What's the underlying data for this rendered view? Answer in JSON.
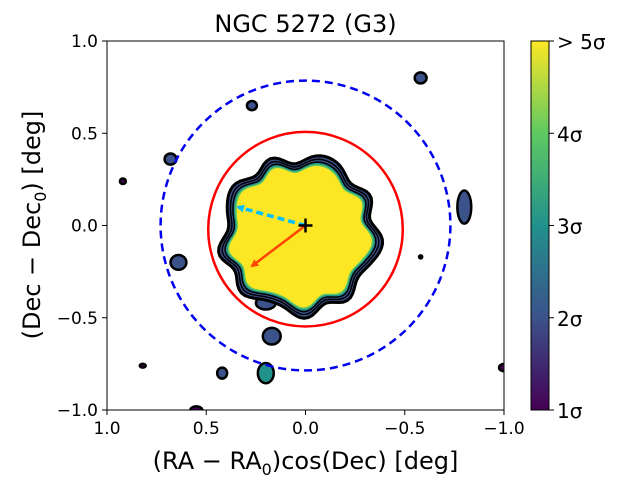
{
  "chart_data": {
    "type": "contour",
    "title": "NGC 5272 (G3)",
    "xlabel": {
      "main": "(RA − RA",
      "sub": "0",
      "tail": ")cos(Dec) [deg]"
    },
    "ylabel": {
      "main": "(Dec − Dec",
      "sub": "0",
      "tail": ") [deg]"
    },
    "xlim": [
      1.0,
      -1.0
    ],
    "ylim": [
      -1.0,
      1.0
    ],
    "xticks": [
      1.0,
      0.5,
      0.0,
      -0.5,
      -1.0
    ],
    "xtick_labels": [
      "1.0",
      "0.5",
      "0.0",
      "−0.5",
      "−1.0"
    ],
    "yticks": [
      1.0,
      0.5,
      0.0,
      -0.5,
      -1.0
    ],
    "ytick_labels": [
      "1.0",
      "0.5",
      "0.0",
      "−0.5",
      "−1.0"
    ],
    "colorbar": {
      "min": 1,
      "max": 5,
      "ticks": [
        1,
        2,
        3,
        4,
        5
      ],
      "tick_labels": [
        "1σ",
        "2σ",
        "3σ",
        "4σ",
        "> 5σ"
      ],
      "colormap": [
        "#440154",
        "#3b528b",
        "#21918c",
        "#5ec962",
        "#fde725"
      ]
    },
    "center": {
      "x": 0.0,
      "y": 0.0,
      "marker": "+"
    },
    "circles": [
      {
        "name": "tidal-radius",
        "x": 0.0,
        "y": -0.02,
        "r": 0.49,
        "color": "#ff0000",
        "style": "solid"
      },
      {
        "name": "outer-radius",
        "x": 0.0,
        "y": 0.0,
        "r": 0.73,
        "color": "#0000ee",
        "style": "dashed"
      }
    ],
    "vectors": [
      {
        "name": "proper-motion",
        "from": [
          0.0,
          0.0
        ],
        "to": [
          0.34,
          0.1
        ],
        "color": "#00bfff",
        "style": "dashed"
      },
      {
        "name": "gradient",
        "from": [
          0.0,
          0.0
        ],
        "to": [
          0.27,
          -0.22
        ],
        "color": "#ff4500",
        "style": "solid"
      }
    ],
    "main_blob": {
      "x": 0.03,
      "y": -0.05,
      "r": 0.39,
      "level": 5
    },
    "small_blobs": [
      {
        "x": -0.58,
        "y": 0.8,
        "rx": 0.03,
        "ry": 0.03,
        "level": 2
      },
      {
        "x": 0.27,
        "y": 0.65,
        "rx": 0.025,
        "ry": 0.025,
        "level": 2
      },
      {
        "x": 0.68,
        "y": 0.36,
        "rx": 0.03,
        "ry": 0.03,
        "level": 2
      },
      {
        "x": 0.92,
        "y": 0.24,
        "rx": 0.015,
        "ry": 0.015,
        "level": 1
      },
      {
        "x": -0.8,
        "y": 0.1,
        "rx": 0.035,
        "ry": 0.09,
        "level": 2
      },
      {
        "x": 0.64,
        "y": -0.2,
        "rx": 0.04,
        "ry": 0.04,
        "level": 2
      },
      {
        "x": 0.2,
        "y": -0.42,
        "rx": 0.05,
        "ry": 0.035,
        "level": 2
      },
      {
        "x": 0.17,
        "y": -0.6,
        "rx": 0.045,
        "ry": 0.045,
        "level": 2
      },
      {
        "x": 0.2,
        "y": -0.8,
        "rx": 0.04,
        "ry": 0.055,
        "level": 3
      },
      {
        "x": 0.42,
        "y": -0.8,
        "rx": 0.025,
        "ry": 0.03,
        "level": 2
      },
      {
        "x": 0.82,
        "y": -0.76,
        "rx": 0.015,
        "ry": 0.01,
        "level": 1
      },
      {
        "x": 0.55,
        "y": -1.0,
        "rx": 0.03,
        "ry": 0.02,
        "level": 1
      },
      {
        "x": -1.0,
        "y": -0.77,
        "rx": 0.025,
        "ry": 0.02,
        "level": 1
      },
      {
        "x": -0.58,
        "y": -0.17,
        "rx": 0.008,
        "ry": 0.008,
        "level": 1
      }
    ]
  }
}
